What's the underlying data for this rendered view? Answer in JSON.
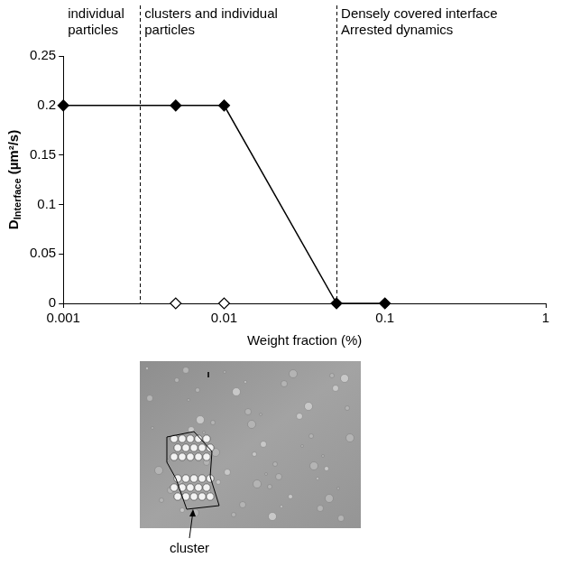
{
  "chart_data": {
    "type": "scatter",
    "x_label": "Weight fraction (%)",
    "y_label": {
      "main": "D",
      "subscript": "Interface",
      "rest": " (µm²/s)"
    },
    "log": "x",
    "xlim": [
      0.001,
      1
    ],
    "xticks": [
      0.001,
      0.01,
      0.1,
      1
    ],
    "ylim": [
      0,
      0.25
    ],
    "yticks": [
      0,
      0.05,
      0.1,
      0.15,
      0.2,
      0.25
    ],
    "grid": false,
    "series": [
      {
        "x": [
          0.001,
          0.005,
          0.01,
          0.05,
          0.1
        ],
        "values": [
          0.2,
          0.2,
          0.2,
          0,
          0
        ],
        "color": "#000000",
        "marker": "diamond",
        "line_style": "solid"
      },
      {
        "x": [
          0.005,
          0.01
        ],
        "values": [
          0,
          0
        ],
        "color": "#000000",
        "marker": "open_diamond",
        "line_style": "none"
      }
    ],
    "boundaries": [
      0.003,
      0.05
    ],
    "regions": [
      "individual particles",
      "clusters and individual particles",
      "Densely covered interface Arrested dynamics"
    ],
    "image_label": "cluster"
  }
}
